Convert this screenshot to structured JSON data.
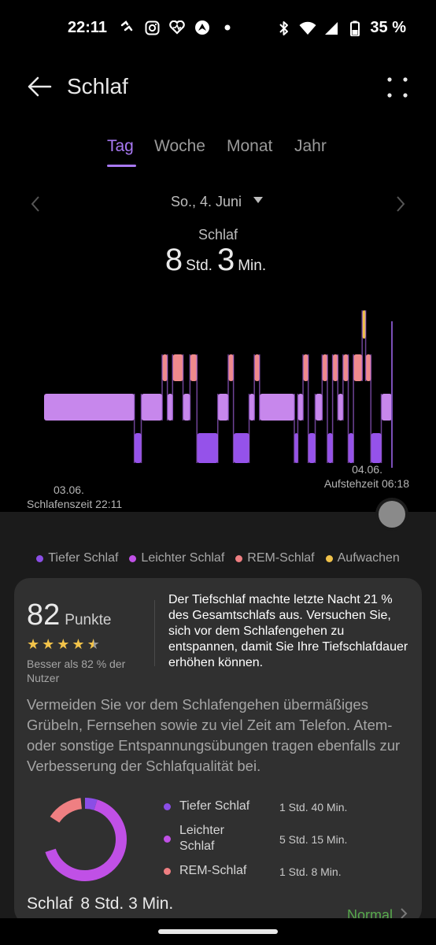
{
  "status_bar": {
    "time": "22:11",
    "battery_text": "35 %",
    "left_icons": [
      "notification-app-icon",
      "instagram-icon",
      "health-app-icon",
      "navigation-app-icon",
      "more-notifications-dot"
    ],
    "right_icons": [
      "bluetooth-icon",
      "wifi-icon",
      "cellular-signal-icon",
      "battery-icon"
    ]
  },
  "header": {
    "title": "Schlaf"
  },
  "tabs": [
    {
      "label": "Tag",
      "active": true
    },
    {
      "label": "Woche",
      "active": false
    },
    {
      "label": "Monat",
      "active": false
    },
    {
      "label": "Jahr",
      "active": false
    }
  ],
  "date_selector": {
    "label": "So., 4. Juni"
  },
  "summary": {
    "label": "Schlaf",
    "hours": "8",
    "hours_unit": "Std.",
    "minutes": "3",
    "minutes_unit": "Min."
  },
  "chart_data": {
    "type": "hypnogram",
    "start_label": {
      "date": "03.06.",
      "text": "Schlafenszeit 22:11"
    },
    "end_label": {
      "date": "04.06.",
      "text": "Aufstehzeit 06:18"
    },
    "stages": [
      "wake",
      "rem",
      "light",
      "deep"
    ],
    "segments": [
      {
        "stage": "light",
        "start": 0.0,
        "end": 0.26
      },
      {
        "stage": "deep",
        "start": 0.26,
        "end": 0.28
      },
      {
        "stage": "light",
        "start": 0.28,
        "end": 0.34
      },
      {
        "stage": "rem",
        "start": 0.34,
        "end": 0.355
      },
      {
        "stage": "light",
        "start": 0.355,
        "end": 0.37
      },
      {
        "stage": "rem",
        "start": 0.37,
        "end": 0.4
      },
      {
        "stage": "light",
        "start": 0.4,
        "end": 0.42
      },
      {
        "stage": "rem",
        "start": 0.42,
        "end": 0.44
      },
      {
        "stage": "deep",
        "start": 0.44,
        "end": 0.5
      },
      {
        "stage": "light",
        "start": 0.5,
        "end": 0.53
      },
      {
        "stage": "rem",
        "start": 0.53,
        "end": 0.545
      },
      {
        "stage": "deep",
        "start": 0.545,
        "end": 0.59
      },
      {
        "stage": "light",
        "start": 0.59,
        "end": 0.605
      },
      {
        "stage": "rem",
        "start": 0.605,
        "end": 0.62
      },
      {
        "stage": "light",
        "start": 0.62,
        "end": 0.72
      },
      {
        "stage": "deep",
        "start": 0.72,
        "end": 0.73
      },
      {
        "stage": "light",
        "start": 0.73,
        "end": 0.745
      },
      {
        "stage": "rem",
        "start": 0.745,
        "end": 0.76
      },
      {
        "stage": "deep",
        "start": 0.76,
        "end": 0.78
      },
      {
        "stage": "light",
        "start": 0.78,
        "end": 0.8
      },
      {
        "stage": "rem",
        "start": 0.8,
        "end": 0.815
      },
      {
        "stage": "deep",
        "start": 0.815,
        "end": 0.83
      },
      {
        "stage": "rem",
        "start": 0.83,
        "end": 0.845
      },
      {
        "stage": "light",
        "start": 0.845,
        "end": 0.86
      },
      {
        "stage": "rem",
        "start": 0.86,
        "end": 0.875
      },
      {
        "stage": "deep",
        "start": 0.875,
        "end": 0.89
      },
      {
        "stage": "rem",
        "start": 0.89,
        "end": 0.915
      },
      {
        "stage": "wake",
        "start": 0.915,
        "end": 0.925
      },
      {
        "stage": "rem",
        "start": 0.925,
        "end": 0.94
      },
      {
        "stage": "deep",
        "start": 0.94,
        "end": 0.97
      },
      {
        "stage": "light",
        "start": 0.97,
        "end": 1.0
      }
    ]
  },
  "legend": [
    {
      "label": "Tiefer Schlaf",
      "color": "#8b4ee6"
    },
    {
      "label": "Leichter Schlaf",
      "color": "#c050e6"
    },
    {
      "label": "REM-Schlaf",
      "color": "#ef7f82"
    },
    {
      "label": "Aufwachen",
      "color": "#f0c24a"
    }
  ],
  "score_card": {
    "score": "82",
    "score_unit": "Punkte",
    "stars": 4.5,
    "comparison": "Besser als 82 % der Nutzer",
    "tip": "Der Tiefschlaf machte letzte Nacht 21 % des Gesamtschlafs aus. Versuchen Sie, sich vor dem Schlafengehen zu entspannen, damit Sie Ihre Tiefschlafdauer erhöhen können.",
    "advice": "Vermeiden Sie vor dem Schlafengehen übermäßiges Grübeln, Fernsehen sowie zu viel Zeit am Telefon. Atem- oder sonstige Entspannungsübungen tragen ebenfalls zur Verbesserung der Schlafqualität bei."
  },
  "breakdown": [
    {
      "name": "Tiefer Schlaf",
      "value": "1 Std. 40 Min.",
      "minutes": 100,
      "color": "#8b4ee6"
    },
    {
      "name": "Leichter Schlaf",
      "value": "5 Std. 15 Min.",
      "minutes": 315,
      "color": "#c050e6"
    },
    {
      "name": "REM-Schlaf",
      "value": "1 Std. 8 Min.",
      "minutes": 68,
      "color": "#ef7f82"
    }
  ],
  "total": {
    "label": "Schlaf",
    "value": "8 Std. 3 Min.",
    "status": "Normal"
  }
}
